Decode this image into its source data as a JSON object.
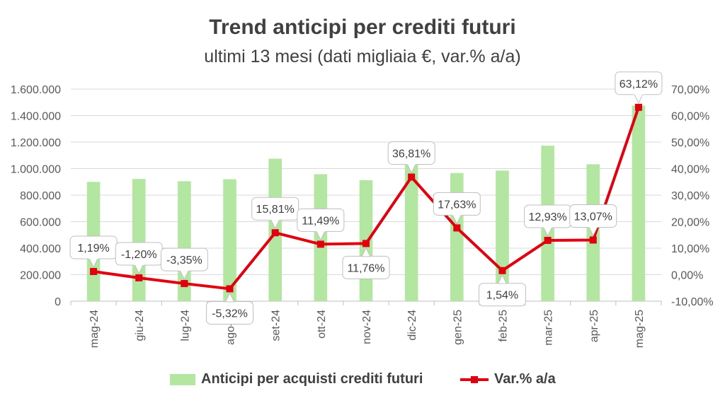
{
  "chart_data": {
    "type": "bar",
    "title": "Trend anticipi per crediti futuri",
    "subtitle": "ultimi 13 mesi (dati migliaia €, var.% a/a)",
    "categories": [
      "mag-24",
      "giu-24",
      "lug-24",
      "ago-24",
      "set-24",
      "ott-24",
      "nov-24",
      "dic-24",
      "gen-25",
      "feb-25",
      "mar-25",
      "apr-25",
      "mag-25"
    ],
    "series": [
      {
        "name": "Anticipi per acquisti crediti futuri",
        "type": "bar",
        "axis": "left",
        "color": "#b3e6a1",
        "values": [
          900000,
          922000,
          905000,
          920000,
          1075000,
          958000,
          913000,
          1168000,
          967000,
          985000,
          1173000,
          1033000,
          1475000
        ]
      },
      {
        "name": "Var.% a/a",
        "type": "line",
        "axis": "right",
        "color": "#e0000f",
        "values": [
          1.19,
          -1.2,
          -3.35,
          -5.32,
          15.81,
          11.49,
          11.76,
          36.81,
          17.63,
          1.54,
          12.93,
          13.07,
          63.12
        ],
        "data_labels": [
          "1,19%",
          "-1,20%",
          "-3,35%",
          "-5,32%",
          "15,81%",
          "11,49%",
          "11,76%",
          "36,81%",
          "17,63%",
          "1,54%",
          "12,93%",
          "13,07%",
          "63,12%"
        ],
        "label_placement": [
          "above",
          "above",
          "above",
          "below",
          "above",
          "above",
          "below",
          "above",
          "above",
          "below",
          "above",
          "above",
          "above"
        ]
      }
    ],
    "y_left": {
      "ylim": [
        0,
        1600000
      ],
      "tick_values": [
        0,
        200000,
        400000,
        600000,
        800000,
        1000000,
        1200000,
        1400000,
        1600000
      ],
      "tick_labels": [
        "0",
        "200.000",
        "400.000",
        "600.000",
        "800.000",
        "1.000.000",
        "1.200.000",
        "1.400.000",
        "1.600.000"
      ]
    },
    "y_right": {
      "ylim": [
        -10,
        70
      ],
      "tick_values": [
        -10,
        0,
        10,
        20,
        30,
        40,
        50,
        60,
        70
      ],
      "tick_labels": [
        "-10,00%",
        "0,00%",
        "10,00%",
        "20,00%",
        "30,00%",
        "40,00%",
        "50,00%",
        "60,00%",
        "70,00%"
      ]
    },
    "grid": true,
    "legend": "bottom"
  }
}
